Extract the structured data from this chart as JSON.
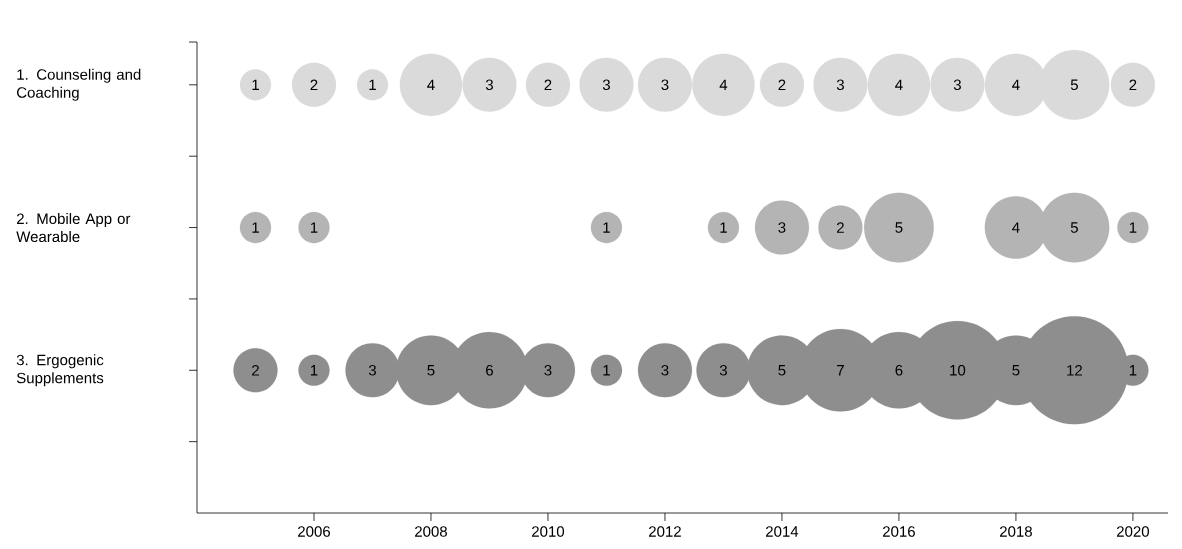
{
  "chart_data": {
    "type": "bubble",
    "categories": [
      "1. Counseling and Coaching",
      "2. Mobile App or Wearable",
      "3. Ergogenic Supplements"
    ],
    "orientation": "horizontal",
    "xlim": [
      2004,
      2020.6
    ],
    "xticks": [
      2006,
      2008,
      2010,
      2012,
      2014,
      2016,
      2018,
      2020
    ],
    "series": [
      {
        "colors": [
          "#dadada",
          "#b4b4b4",
          "#8e8e8e"
        ],
        "values": [
          2005,
          2005,
          2005
        ],
        "sizes": [
          1,
          1,
          2
        ],
        "value_labels": [
          "1",
          "1",
          "2"
        ]
      },
      {
        "colors": [
          "#dadada",
          "#b4b4b4",
          "#8e8e8e"
        ],
        "values": [
          2006,
          2006,
          2006
        ],
        "sizes": [
          2,
          1,
          1
        ],
        "value_labels": [
          "2",
          "1",
          "1"
        ]
      },
      {
        "colors": [
          "#dadada",
          "#b4b4b4",
          "#8e8e8e"
        ],
        "values": [
          2007,
          null,
          2007
        ],
        "sizes": [
          1,
          null,
          3
        ],
        "value_labels": [
          "1",
          null,
          "3"
        ]
      },
      {
        "colors": [
          "#dadada",
          "#b4b4b4",
          "#8e8e8e"
        ],
        "values": [
          2008,
          null,
          2008
        ],
        "sizes": [
          4,
          null,
          5
        ],
        "value_labels": [
          "4",
          null,
          "5"
        ]
      },
      {
        "colors": [
          "#dadada",
          "#b4b4b4",
          "#8e8e8e"
        ],
        "values": [
          2009,
          null,
          2009
        ],
        "sizes": [
          3,
          null,
          6
        ],
        "value_labels": [
          "3",
          null,
          "6"
        ]
      },
      {
        "colors": [
          "#dadada",
          "#b4b4b4",
          "#8e8e8e"
        ],
        "values": [
          2010,
          null,
          2010
        ],
        "sizes": [
          2,
          null,
          3
        ],
        "value_labels": [
          "2",
          null,
          "3"
        ]
      },
      {
        "colors": [
          "#dadada",
          "#b4b4b4",
          "#8e8e8e"
        ],
        "values": [
          2011,
          2011,
          2011
        ],
        "sizes": [
          3,
          1,
          1
        ],
        "value_labels": [
          "3",
          "1",
          "1"
        ]
      },
      {
        "colors": [
          "#dadada",
          "#b4b4b4",
          "#8e8e8e"
        ],
        "values": [
          2012,
          null,
          2012
        ],
        "sizes": [
          3,
          null,
          3
        ],
        "value_labels": [
          "3",
          null,
          "3"
        ]
      },
      {
        "colors": [
          "#dadada",
          "#b4b4b4",
          "#8e8e8e"
        ],
        "values": [
          2013,
          2013,
          2013
        ],
        "sizes": [
          4,
          1,
          3
        ],
        "value_labels": [
          "4",
          "1",
          "3"
        ]
      },
      {
        "colors": [
          "#dadada",
          "#b4b4b4",
          "#8e8e8e"
        ],
        "values": [
          2014,
          2014,
          2014
        ],
        "sizes": [
          2,
          3,
          5
        ],
        "value_labels": [
          "2",
          "3",
          "5"
        ]
      },
      {
        "colors": [
          "#dadada",
          "#b4b4b4",
          "#8e8e8e"
        ],
        "values": [
          2015,
          2015,
          2015
        ],
        "sizes": [
          3,
          2,
          7
        ],
        "value_labels": [
          "3",
          "2",
          "7"
        ]
      },
      {
        "colors": [
          "#dadada",
          "#b4b4b4",
          "#8e8e8e"
        ],
        "values": [
          2016,
          2016,
          2016
        ],
        "sizes": [
          4,
          5,
          6
        ],
        "value_labels": [
          "4",
          "5",
          "6"
        ]
      },
      {
        "colors": [
          "#dadada",
          "#b4b4b4",
          "#8e8e8e"
        ],
        "values": [
          2017,
          null,
          2017
        ],
        "sizes": [
          3,
          null,
          10
        ],
        "value_labels": [
          "3",
          null,
          "10"
        ]
      },
      {
        "colors": [
          "#dadada",
          "#b4b4b4",
          "#8e8e8e"
        ],
        "values": [
          2018,
          2018,
          2018
        ],
        "sizes": [
          4,
          4,
          5
        ],
        "value_labels": [
          "4",
          "4",
          "5"
        ]
      },
      {
        "colors": [
          "#dadada",
          "#b4b4b4",
          "#8e8e8e"
        ],
        "values": [
          2019,
          2019,
          2019
        ],
        "sizes": [
          5,
          5,
          12
        ],
        "value_labels": [
          "5",
          "5",
          "12"
        ]
      },
      {
        "colors": [
          "#dadada",
          "#b4b4b4",
          "#8e8e8e"
        ],
        "values": [
          2020,
          2020,
          2020
        ],
        "sizes": [
          2,
          1,
          1
        ],
        "value_labels": [
          "2",
          "1",
          "1"
        ]
      }
    ]
  }
}
